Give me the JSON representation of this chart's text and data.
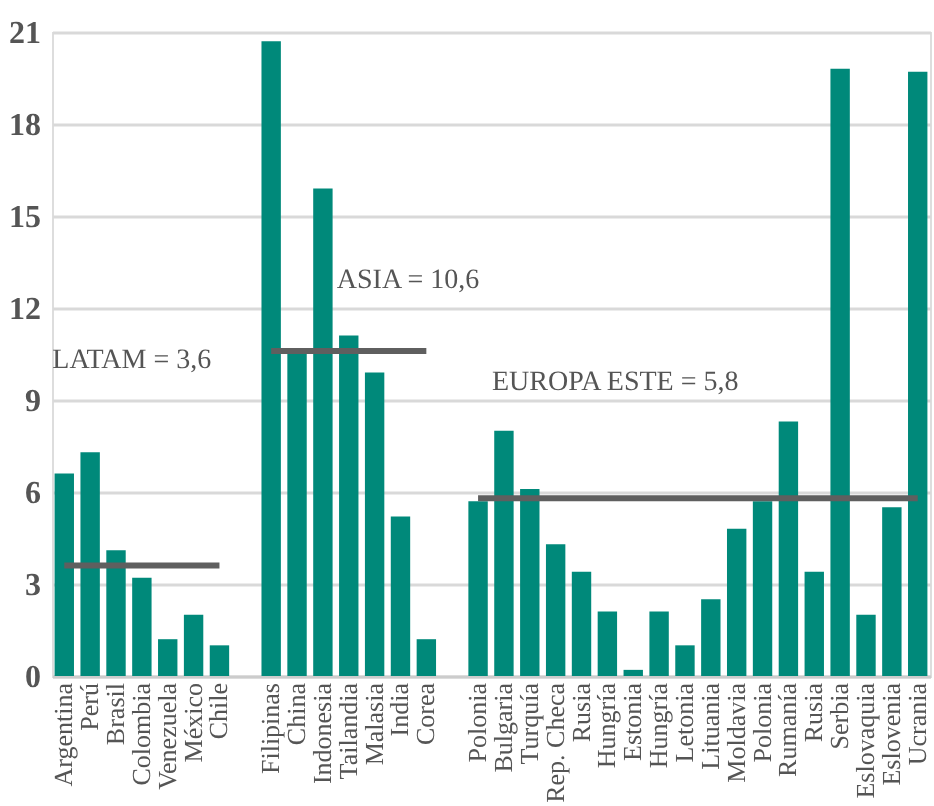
{
  "chart_data": {
    "type": "bar",
    "categories": [
      "Argentina",
      "Perú",
      "Brasil",
      "Colombia",
      "Venezuela",
      "México",
      "Chile",
      null,
      "Filipinas",
      "China",
      "Indonesia",
      "Tailandia",
      "Malasia",
      "India",
      "Corea",
      null,
      "Polonia",
      "Bulgaria",
      "Turquía",
      "Rep. Checa",
      "Rusia",
      "Hungría",
      "Estonia",
      "Hungría",
      "Letonia",
      "Lituania",
      "Moldavia",
      "Polonia",
      "Rumanía",
      "Rusia",
      "Serbia",
      "Eslovaquia",
      "Eslovenia",
      "Ucrania"
    ],
    "series": [
      {
        "color": "#00897a",
        "values": [
          6.6,
          7.3,
          4.1,
          3.2,
          1.2,
          2.0,
          1.0,
          null,
          20.7,
          10.6,
          15.9,
          11.1,
          9.9,
          5.2,
          1.2,
          null,
          5.7,
          8.0,
          6.1,
          4.3,
          3.4,
          2.1,
          0.2,
          2.1,
          1.0,
          2.5,
          4.8,
          5.7,
          8.3,
          3.4,
          19.8,
          2.0,
          5.5,
          19.7
        ]
      },
      {
        "type": "line",
        "color": "#5f5f5f",
        "values": [
          3.6,
          3.6,
          3.6,
          3.6,
          3.6,
          3.6,
          3.6,
          null,
          null,
          null,
          null,
          null,
          null,
          null,
          null,
          null,
          null,
          null,
          null,
          null,
          null,
          null,
          null,
          null,
          null,
          null,
          null,
          null,
          null,
          null,
          null,
          null,
          null,
          null
        ]
      },
      {
        "type": "line",
        "color": "#5f5f5f",
        "values": [
          null,
          null,
          null,
          null,
          null,
          null,
          null,
          null,
          10.6,
          10.6,
          10.6,
          10.6,
          10.6,
          10.6,
          10.6,
          null,
          null,
          null,
          null,
          null,
          null,
          null,
          null,
          null,
          null,
          null,
          null,
          null,
          null,
          null,
          null,
          null,
          null,
          null
        ]
      },
      {
        "type": "line",
        "color": "#5f5f5f",
        "values": [
          null,
          null,
          null,
          null,
          null,
          null,
          null,
          null,
          null,
          null,
          null,
          null,
          null,
          null,
          null,
          null,
          5.8,
          5.8,
          5.8,
          5.8,
          5.8,
          5.8,
          5.8,
          5.8,
          5.8,
          5.8,
          5.8,
          5.8,
          5.8,
          5.8,
          5.8,
          5.8,
          5.8,
          5.8
        ]
      }
    ],
    "annotations": [
      "LATAM = 3,6",
      "ASIA = 10,6",
      "EUROPA ESTE = 5,8"
    ],
    "ylim": [
      0,
      21
    ],
    "yticks": [
      0,
      3,
      6,
      9,
      12,
      15,
      18,
      21
    ],
    "grid": "y"
  }
}
